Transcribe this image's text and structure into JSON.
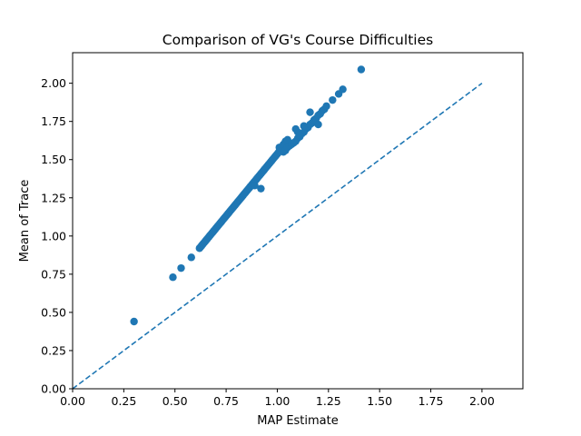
{
  "chart_data": {
    "type": "scatter",
    "title": "Comparison of VG's Course Difficulties",
    "xlabel": "MAP Estimate",
    "ylabel": "Mean of Trace",
    "xlim": [
      0.0,
      2.2
    ],
    "ylim": [
      0.0,
      2.2
    ],
    "xticks": [
      "0.00",
      "0.25",
      "0.50",
      "0.75",
      "1.00",
      "1.25",
      "1.50",
      "1.75",
      "2.00"
    ],
    "yticks": [
      "0.00",
      "0.25",
      "0.50",
      "0.75",
      "1.00",
      "1.25",
      "1.50",
      "1.75",
      "2.00"
    ],
    "grid": false,
    "colors": {
      "points": "#1f77b4",
      "reference_line": "#1f77b4"
    },
    "reference_line": {
      "style": "dashed",
      "x": [
        0.0,
        2.0
      ],
      "y": [
        0.0,
        2.0
      ]
    },
    "main_trend": {
      "x_start": 0.62,
      "x_end": 1.02,
      "y_start": 0.92,
      "y_end": 1.57,
      "count": 70
    },
    "series": [
      {
        "values": [
          [
            0.3,
            0.44
          ],
          [
            0.49,
            0.73
          ],
          [
            0.53,
            0.79
          ],
          [
            0.58,
            0.86
          ],
          [
            0.89,
            1.33
          ],
          [
            0.92,
            1.31
          ],
          [
            1.01,
            1.58
          ],
          [
            1.03,
            1.6
          ],
          [
            1.04,
            1.62
          ],
          [
            1.05,
            1.63
          ],
          [
            1.03,
            1.55
          ],
          [
            1.04,
            1.56
          ],
          [
            1.05,
            1.58
          ],
          [
            1.06,
            1.59
          ],
          [
            1.07,
            1.6
          ],
          [
            1.08,
            1.61
          ],
          [
            1.09,
            1.62
          ],
          [
            1.1,
            1.64
          ],
          [
            1.11,
            1.65
          ],
          [
            1.12,
            1.67
          ],
          [
            1.13,
            1.68
          ],
          [
            1.14,
            1.7
          ],
          [
            1.15,
            1.71
          ],
          [
            1.16,
            1.73
          ],
          [
            1.17,
            1.74
          ],
          [
            1.18,
            1.76
          ],
          [
            1.19,
            1.77
          ],
          [
            1.2,
            1.79
          ],
          [
            1.21,
            1.8
          ],
          [
            1.22,
            1.82
          ],
          [
            1.23,
            1.83
          ],
          [
            1.24,
            1.85
          ],
          [
            1.09,
            1.7
          ],
          [
            1.1,
            1.68
          ],
          [
            1.11,
            1.66
          ],
          [
            1.13,
            1.72
          ],
          [
            1.16,
            1.81
          ],
          [
            1.2,
            1.73
          ],
          [
            1.27,
            1.89
          ],
          [
            1.3,
            1.93
          ],
          [
            1.32,
            1.96
          ],
          [
            1.41,
            2.09
          ]
        ]
      }
    ]
  }
}
